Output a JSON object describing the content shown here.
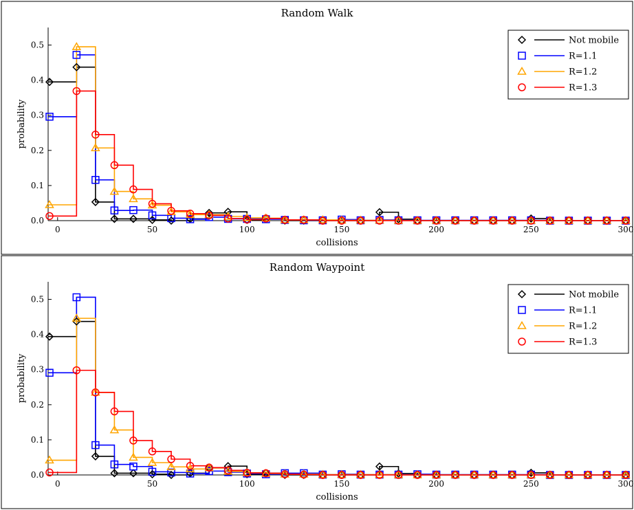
{
  "chart_data": [
    {
      "type": "line",
      "title": "Random Walk",
      "xlabel": "collisions",
      "ylabel": "probability",
      "xlim": [
        -5,
        300
      ],
      "ylim": [
        0,
        0.55
      ],
      "xticks": [
        0,
        50,
        100,
        150,
        200,
        250,
        300
      ],
      "yticks": [
        0.0,
        0.1,
        0.2,
        0.3,
        0.4,
        0.5
      ],
      "grid": false,
      "legend": "top-right",
      "step": "post",
      "x": [
        0,
        10,
        20,
        30,
        40,
        50,
        60,
        70,
        80,
        90,
        100,
        110,
        120,
        130,
        140,
        150,
        160,
        170,
        180,
        190,
        200,
        210,
        220,
        230,
        240,
        250,
        260,
        270,
        280,
        290,
        300
      ],
      "series": [
        {
          "name": "Not mobile",
          "color": "#000000",
          "marker": "diamond",
          "values": [
            0.395,
            0.437,
            0.053,
            0.005,
            0.005,
            0.002,
            0.0,
            0.005,
            0.022,
            0.025,
            0.002,
            0.005,
            0.0,
            0.0,
            0.0,
            0.0,
            0.0,
            0.024,
            0.004,
            0.0,
            0.0,
            0.0,
            0.0,
            0.0,
            0.0,
            0.006,
            0.0,
            0.0,
            0.0,
            0.0,
            0.0
          ]
        },
        {
          "name": "R=1.1",
          "color": "#0000ff",
          "marker": "square",
          "values": [
            0.296,
            0.472,
            0.116,
            0.029,
            0.03,
            0.015,
            0.007,
            0.004,
            0.01,
            0.005,
            0.005,
            0.004,
            0.002,
            0.001,
            0.001,
            0.003,
            0.001,
            0.002,
            0.001,
            0.001,
            0.001,
            0.001,
            0.001,
            0.001,
            0.001,
            0.001,
            0.0,
            0.0,
            0.0,
            0.0,
            0.0
          ]
        },
        {
          "name": "R=1.2",
          "color": "#ffa500",
          "marker": "triangle",
          "values": [
            0.045,
            0.495,
            0.207,
            0.083,
            0.062,
            0.044,
            0.025,
            0.017,
            0.017,
            0.012,
            0.008,
            0.007,
            0.002,
            0.002,
            0.002,
            0.001,
            0.001,
            0.001,
            0.0,
            0.0,
            0.0,
            0.0,
            0.0,
            0.0,
            0.0,
            0.0,
            0.0,
            0.0,
            0.0,
            0.0,
            0.0
          ]
        },
        {
          "name": "R=1.3",
          "color": "#ff0000",
          "marker": "circle",
          "values": [
            0.013,
            0.369,
            0.245,
            0.158,
            0.089,
            0.048,
            0.028,
            0.02,
            0.015,
            0.006,
            0.003,
            0.006,
            0.002,
            0.002,
            0.0,
            0.0,
            0.0,
            0.0,
            0.0,
            0.0,
            0.0,
            0.0,
            0.0,
            0.0,
            0.0,
            0.0,
            0.0,
            0.0,
            0.0,
            0.0,
            0.0
          ]
        }
      ]
    },
    {
      "type": "line",
      "title": "Random Waypoint",
      "xlabel": "collisions",
      "ylabel": "probability",
      "xlim": [
        -5,
        300
      ],
      "ylim": [
        0,
        0.55
      ],
      "xticks": [
        0,
        50,
        100,
        150,
        200,
        250,
        300
      ],
      "yticks": [
        0.0,
        0.1,
        0.2,
        0.3,
        0.4,
        0.5
      ],
      "grid": false,
      "legend": "top-right",
      "step": "post",
      "x": [
        0,
        10,
        20,
        30,
        40,
        50,
        60,
        70,
        80,
        90,
        100,
        110,
        120,
        130,
        140,
        150,
        160,
        170,
        180,
        190,
        200,
        210,
        220,
        230,
        240,
        250,
        260,
        270,
        280,
        290,
        300
      ],
      "series": [
        {
          "name": "Not mobile",
          "color": "#000000",
          "marker": "diamond",
          "values": [
            0.394,
            0.437,
            0.053,
            0.005,
            0.005,
            0.002,
            0.0,
            0.005,
            0.02,
            0.025,
            0.002,
            0.005,
            0.0,
            0.0,
            0.0,
            0.0,
            0.0,
            0.024,
            0.004,
            0.0,
            0.0,
            0.0,
            0.0,
            0.0,
            0.0,
            0.006,
            0.0,
            0.0,
            0.0,
            0.0,
            0.0
          ]
        },
        {
          "name": "R=1.1",
          "color": "#0000ff",
          "marker": "square",
          "values": [
            0.291,
            0.506,
            0.085,
            0.03,
            0.024,
            0.009,
            0.007,
            0.004,
            0.011,
            0.008,
            0.004,
            0.002,
            0.005,
            0.005,
            0.001,
            0.002,
            0.001,
            0.001,
            0.001,
            0.002,
            0.001,
            0.001,
            0.001,
            0.001,
            0.001,
            0.001,
            0.0,
            0.0,
            0.0,
            0.0,
            0.0
          ]
        },
        {
          "name": "R=1.2",
          "color": "#ffa500",
          "marker": "triangle",
          "values": [
            0.042,
            0.446,
            0.235,
            0.128,
            0.05,
            0.035,
            0.023,
            0.017,
            0.02,
            0.01,
            0.006,
            0.004,
            0.002,
            0.002,
            0.001,
            0.001,
            0.001,
            0.001,
            0.0,
            0.0,
            0.0,
            0.0,
            0.0,
            0.0,
            0.0,
            0.0,
            0.0,
            0.0,
            0.0,
            0.0,
            0.0
          ]
        },
        {
          "name": "R=1.3",
          "color": "#ff0000",
          "marker": "circle",
          "values": [
            0.007,
            0.298,
            0.235,
            0.181,
            0.098,
            0.067,
            0.045,
            0.026,
            0.021,
            0.013,
            0.006,
            0.005,
            0.002,
            0.001,
            0.0,
            0.0,
            0.0,
            0.0,
            0.0,
            0.0,
            0.0,
            0.0,
            0.0,
            0.0,
            0.0,
            0.0,
            0.0,
            0.0,
            0.0,
            0.0,
            0.0
          ]
        }
      ]
    }
  ]
}
